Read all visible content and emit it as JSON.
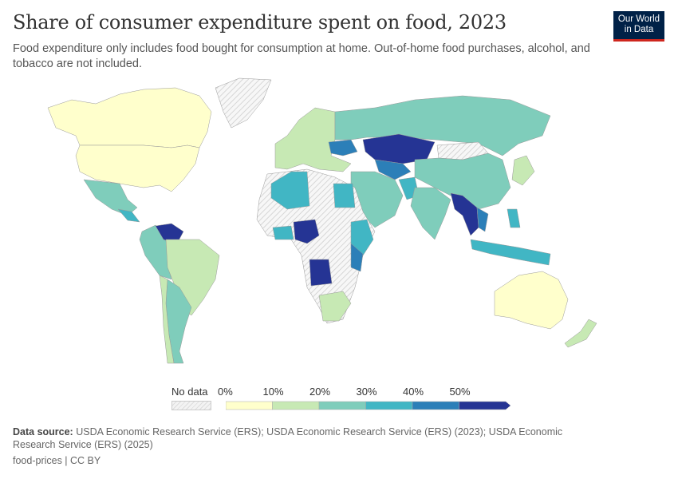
{
  "title": "Share of consumer expenditure spent on food, 2023",
  "subtitle": "Food expenditure only includes food bought for consumption at home. Out-of-home food purchases, alcohol, and tobacco are not included.",
  "logo": {
    "line1": "Our World",
    "line2": "in Data"
  },
  "legend": {
    "no_data_label": "No data",
    "ticks": [
      "0%",
      "10%",
      "20%",
      "30%",
      "40%",
      "50%"
    ],
    "colors": [
      "#ffffcc",
      "#c7e9b4",
      "#7fcdbb",
      "#41b6c4",
      "#2c7fb8",
      "#253494"
    ],
    "no_data_color": "#eeeeee"
  },
  "footer": {
    "source_label": "Data source:",
    "source_text": "USDA Economic Research Service (ERS); USDA Economic Research Service (ERS) (2023); USDA Economic Research Service (ERS) (2025)",
    "license": "food-prices | CC BY"
  },
  "map_data": {
    "type": "choropleth",
    "buckets": [
      "0-10%",
      "10-20%",
      "20-30%",
      "30-40%",
      "40-50%",
      "50%+"
    ]
  }
}
